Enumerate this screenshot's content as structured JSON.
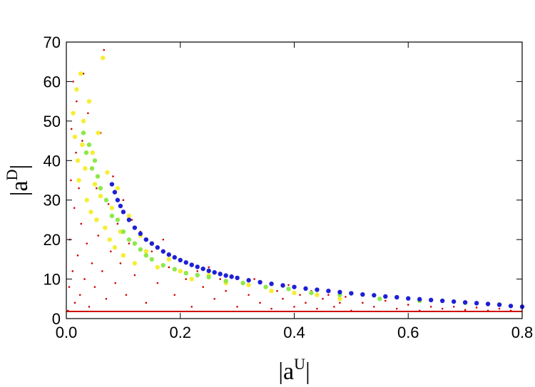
{
  "chart_data": {
    "type": "scatter",
    "xlabel": "|a",
    "xlabel_sup": "U",
    "xlabel_close": "|",
    "ylabel": "|a",
    "ylabel_sup": "D",
    "ylabel_close": "|",
    "xlim": [
      0,
      0.8
    ],
    "ylim": [
      0,
      70
    ],
    "x_ticks": [
      0.0,
      0.2,
      0.4,
      0.6,
      0.8
    ],
    "x_tick_labels": [
      "0.0",
      "0.2",
      "0.4",
      "0.6",
      "0.8"
    ],
    "y_ticks": [
      0,
      10,
      20,
      30,
      40,
      50,
      60,
      70
    ],
    "y_tick_labels": [
      "0",
      "10",
      "20",
      "30",
      "40",
      "50",
      "60",
      "70"
    ],
    "frame": "box",
    "grid": false,
    "series": [
      {
        "color": "#d00000",
        "marker": "small-dot",
        "points": [
          [
            0.003,
            2
          ],
          [
            0.005,
            8
          ],
          [
            0.006,
            20
          ],
          [
            0.008,
            35
          ],
          [
            0.009,
            48
          ],
          [
            0.011,
            12
          ],
          [
            0.012,
            60
          ],
          [
            0.014,
            28
          ],
          [
            0.015,
            4
          ],
          [
            0.017,
            42
          ],
          [
            0.018,
            55
          ],
          [
            0.02,
            16
          ],
          [
            0.022,
            33
          ],
          [
            0.024,
            6
          ],
          [
            0.026,
            24
          ],
          [
            0.028,
            45
          ],
          [
            0.03,
            62
          ],
          [
            0.032,
            10
          ],
          [
            0.034,
            38
          ],
          [
            0.036,
            19
          ],
          [
            0.038,
            52
          ],
          [
            0.04,
            3
          ],
          [
            0.042,
            27
          ],
          [
            0.045,
            14
          ],
          [
            0.048,
            40
          ],
          [
            0.05,
            8
          ],
          [
            0.053,
            33
          ],
          [
            0.056,
            21
          ],
          [
            0.06,
            47
          ],
          [
            0.063,
            12
          ],
          [
            0.066,
            68
          ],
          [
            0.07,
            5
          ],
          [
            0.074,
            29
          ],
          [
            0.078,
            17
          ],
          [
            0.082,
            36
          ],
          [
            0.086,
            9
          ],
          [
            0.09,
            24
          ],
          [
            0.095,
            14
          ],
          [
            0.1,
            30
          ],
          [
            0.105,
            6
          ],
          [
            0.11,
            19
          ],
          [
            0.115,
            25
          ],
          [
            0.12,
            11
          ],
          [
            0.13,
            22
          ],
          [
            0.14,
            4
          ],
          [
            0.15,
            17
          ],
          [
            0.16,
            9
          ],
          [
            0.17,
            20
          ],
          [
            0.18,
            13
          ],
          [
            0.19,
            6
          ],
          [
            0.2,
            15
          ],
          [
            0.21,
            10
          ],
          [
            0.22,
            3
          ],
          [
            0.23,
            12
          ],
          [
            0.24,
            8
          ],
          [
            0.25,
            13
          ],
          [
            0.26,
            5
          ],
          [
            0.27,
            10
          ],
          [
            0.28,
            7
          ],
          [
            0.29,
            11
          ],
          [
            0.3,
            3
          ],
          [
            0.31,
            9
          ],
          [
            0.32,
            6
          ],
          [
            0.33,
            10
          ],
          [
            0.34,
            4
          ],
          [
            0.35,
            8
          ],
          [
            0.36,
            2.5
          ],
          [
            0.37,
            7
          ],
          [
            0.38,
            5
          ],
          [
            0.39,
            8.5
          ],
          [
            0.4,
            3
          ],
          [
            0.41,
            6
          ],
          [
            0.42,
            4
          ],
          [
            0.43,
            7
          ],
          [
            0.44,
            2.5
          ],
          [
            0.45,
            5
          ],
          [
            0.46,
            6
          ],
          [
            0.47,
            3
          ],
          [
            0.48,
            4
          ],
          [
            0.49,
            5.5
          ],
          [
            0.5,
            2
          ],
          [
            0.52,
            4
          ],
          [
            0.54,
            3
          ],
          [
            0.56,
            4.5
          ],
          [
            0.58,
            2.5
          ],
          [
            0.6,
            3.5
          ],
          [
            0.62,
            2
          ],
          [
            0.64,
            3
          ],
          [
            0.66,
            2.5
          ],
          [
            0.68,
            3
          ],
          [
            0.7,
            2.2
          ],
          [
            0.72,
            2.8
          ],
          [
            0.74,
            2
          ],
          [
            0.76,
            2.5
          ],
          [
            0.78,
            2
          ]
        ]
      },
      {
        "color": "#f5ee33",
        "marker": "dot",
        "points": [
          [
            0.012,
            52
          ],
          [
            0.015,
            46
          ],
          [
            0.018,
            58
          ],
          [
            0.02,
            40
          ],
          [
            0.022,
            35
          ],
          [
            0.025,
            62
          ],
          [
            0.028,
            44
          ],
          [
            0.03,
            50
          ],
          [
            0.033,
            38
          ],
          [
            0.036,
            30
          ],
          [
            0.04,
            55
          ],
          [
            0.043,
            27
          ],
          [
            0.046,
            42
          ],
          [
            0.05,
            34
          ],
          [
            0.053,
            25
          ],
          [
            0.056,
            47
          ],
          [
            0.06,
            31
          ],
          [
            0.064,
            66
          ],
          [
            0.068,
            23
          ],
          [
            0.072,
            37
          ],
          [
            0.076,
            20
          ],
          [
            0.08,
            28
          ],
          [
            0.085,
            18
          ],
          [
            0.09,
            33
          ],
          [
            0.095,
            22
          ],
          [
            0.1,
            16
          ],
          [
            0.11,
            26
          ],
          [
            0.12,
            14
          ],
          [
            0.13,
            21
          ],
          [
            0.14,
            17
          ],
          [
            0.15,
            19
          ],
          [
            0.16,
            13
          ],
          [
            0.18,
            15
          ],
          [
            0.2,
            12
          ],
          [
            0.22,
            10
          ],
          [
            0.25,
            11
          ],
          [
            0.28,
            9
          ],
          [
            0.32,
            8.5
          ],
          [
            0.36,
            7
          ],
          [
            0.4,
            6.5
          ],
          [
            0.44,
            6
          ],
          [
            0.48,
            5
          ]
        ]
      },
      {
        "color": "#8de84a",
        "marker": "dot",
        "points": [
          [
            0.03,
            47
          ],
          [
            0.035,
            42
          ],
          [
            0.04,
            44
          ],
          [
            0.045,
            38
          ],
          [
            0.05,
            40
          ],
          [
            0.055,
            36
          ],
          [
            0.06,
            33
          ],
          [
            0.07,
            30
          ],
          [
            0.08,
            26
          ],
          [
            0.09,
            25
          ],
          [
            0.1,
            22
          ],
          [
            0.11,
            20
          ],
          [
            0.12,
            19
          ],
          [
            0.13,
            17.5
          ],
          [
            0.14,
            16
          ],
          [
            0.15,
            15
          ],
          [
            0.17,
            13.5
          ],
          [
            0.19,
            12.5
          ],
          [
            0.21,
            11.5
          ],
          [
            0.23,
            11
          ],
          [
            0.25,
            10.5
          ],
          [
            0.28,
            9.5
          ],
          [
            0.31,
            9
          ],
          [
            0.35,
            8
          ],
          [
            0.39,
            7.5
          ],
          [
            0.43,
            6.5
          ],
          [
            0.48,
            6
          ],
          [
            0.55,
            5
          ],
          [
            0.62,
            4.5
          ],
          [
            0.7,
            4
          ],
          [
            0.76,
            3.6
          ]
        ]
      },
      {
        "color": "#1f1fd6",
        "marker": "dot",
        "points": [
          [
            0.08,
            34
          ],
          [
            0.085,
            32
          ],
          [
            0.09,
            30
          ],
          [
            0.095,
            28.5
          ],
          [
            0.1,
            27
          ],
          [
            0.11,
            25
          ],
          [
            0.12,
            23
          ],
          [
            0.13,
            21.5
          ],
          [
            0.14,
            20
          ],
          [
            0.15,
            19
          ],
          [
            0.16,
            18
          ],
          [
            0.17,
            17
          ],
          [
            0.18,
            16.2
          ],
          [
            0.19,
            15.5
          ],
          [
            0.2,
            14.8
          ],
          [
            0.21,
            14.2
          ],
          [
            0.22,
            13.6
          ],
          [
            0.23,
            13.1
          ],
          [
            0.24,
            12.6
          ],
          [
            0.25,
            12.1
          ],
          [
            0.26,
            11.7
          ],
          [
            0.27,
            11.3
          ],
          [
            0.28,
            10.9
          ],
          [
            0.29,
            10.6
          ],
          [
            0.3,
            10.3
          ],
          [
            0.32,
            9.7
          ],
          [
            0.34,
            9.2
          ],
          [
            0.36,
            8.8
          ],
          [
            0.38,
            8.4
          ],
          [
            0.4,
            8
          ],
          [
            0.42,
            7.6
          ],
          [
            0.44,
            7.3
          ],
          [
            0.46,
            7
          ],
          [
            0.48,
            6.7
          ],
          [
            0.5,
            6.4
          ],
          [
            0.52,
            6.1
          ],
          [
            0.54,
            5.9
          ],
          [
            0.56,
            5.6
          ],
          [
            0.58,
            5.4
          ],
          [
            0.6,
            5.1
          ],
          [
            0.62,
            4.9
          ],
          [
            0.64,
            4.7
          ],
          [
            0.66,
            4.5
          ],
          [
            0.68,
            4.3
          ],
          [
            0.7,
            4.1
          ],
          [
            0.72,
            3.9
          ],
          [
            0.74,
            3.7
          ],
          [
            0.76,
            3.5
          ],
          [
            0.78,
            3.2
          ],
          [
            0.8,
            3
          ]
        ]
      }
    ],
    "lines": [
      {
        "color": "#d00000",
        "points": [
          [
            0.0,
            1.8
          ],
          [
            0.8,
            1.8
          ]
        ]
      }
    ]
  }
}
